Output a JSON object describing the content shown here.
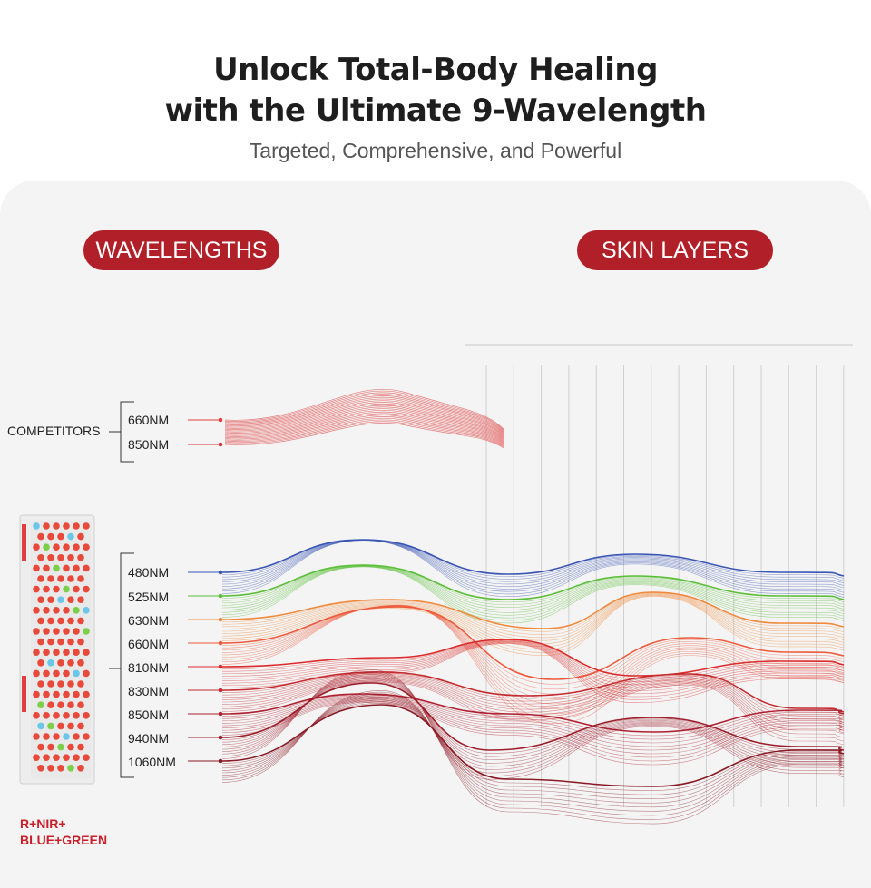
{
  "header": {
    "title_line1": "Unlock Total-Body Healing",
    "title_line2": "with the Ultimate 9-Wavelength",
    "subtitle": "Targeted, Comprehensive, and Powerful"
  },
  "sections": {
    "wavelengths_label": "WAVELENGTHS",
    "skin_layers_label": "SKIN LAYERS"
  },
  "competitors": {
    "label": "COMPETITORS",
    "wavelengths": [
      {
        "name": "660NM",
        "color": "#e03c3c"
      },
      {
        "name": "850NM",
        "color": "#d4303c"
      }
    ]
  },
  "device": {
    "wavelengths": [
      {
        "name": "480NM",
        "color": "#3a56b5"
      },
      {
        "name": "525NM",
        "color": "#5cbf3a"
      },
      {
        "name": "630NM",
        "color": "#f08a3c"
      },
      {
        "name": "660NM",
        "color": "#ee5a3a"
      },
      {
        "name": "810NM",
        "color": "#dd2a2a"
      },
      {
        "name": "830NM",
        "color": "#c42a2e"
      },
      {
        "name": "850NM",
        "color": "#b02030"
      },
      {
        "name": "940NM",
        "color": "#9c1e2a"
      },
      {
        "name": "1060NM",
        "color": "#8a1a24"
      }
    ],
    "tag_line1": "R+NIR+",
    "tag_line2": "BLUE+GREEN"
  },
  "skin_layers_count": 14,
  "accent_color": "#b11f28"
}
